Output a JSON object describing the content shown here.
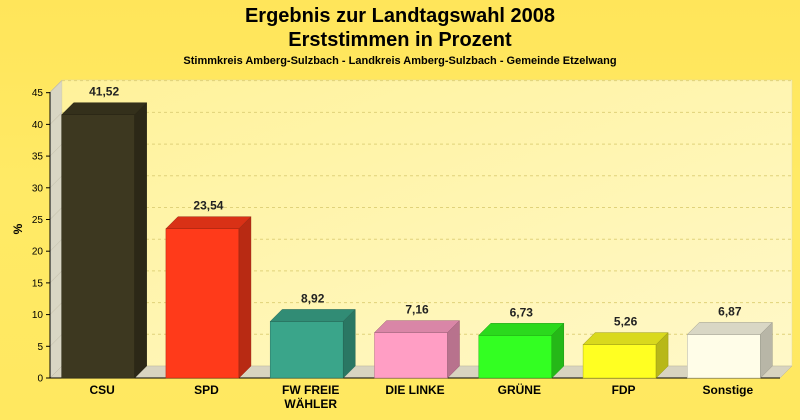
{
  "title_line1": "Ergebnis zur Landtagswahl 2008",
  "title_line2": "Erststimmen in Prozent",
  "subtitle": "Stimmkreis Amberg-Sulzbach - Landkreis Amberg-Sulzbach - Gemeinde Etzelwang",
  "chart_data": {
    "type": "bar",
    "title": "Ergebnis zur Landtagswahl 2008 Erststimmen in Prozent",
    "subtitle": "Stimmkreis Amberg-Sulzbach - Landkreis Amberg-Sulzbach - Gemeinde Etzelwang",
    "ylabel": "%",
    "xlabel": "",
    "ylim": [
      0,
      47
    ],
    "yticks": [
      0,
      5,
      10,
      15,
      20,
      25,
      30,
      35,
      40,
      45
    ],
    "grid": true,
    "categories": [
      [
        "CSU"
      ],
      [
        "SPD"
      ],
      [
        "FW FREIE",
        "WÄHLER"
      ],
      [
        "DIE LINKE"
      ],
      [
        "GRÜNE"
      ],
      [
        "FDP"
      ],
      [
        "Sonstige"
      ]
    ],
    "values": [
      41.52,
      23.54,
      8.92,
      7.16,
      6.73,
      5.26,
      6.87
    ],
    "value_labels": [
      "41,52",
      "23,54",
      "8,92",
      "7,16",
      "6,73",
      "5,26",
      "6,87"
    ],
    "colors": [
      "#3d3820",
      "#ff3a1a",
      "#3aa58a",
      "#ff9ec4",
      "#33ff22",
      "#ffff22",
      "#fffde8"
    ]
  }
}
